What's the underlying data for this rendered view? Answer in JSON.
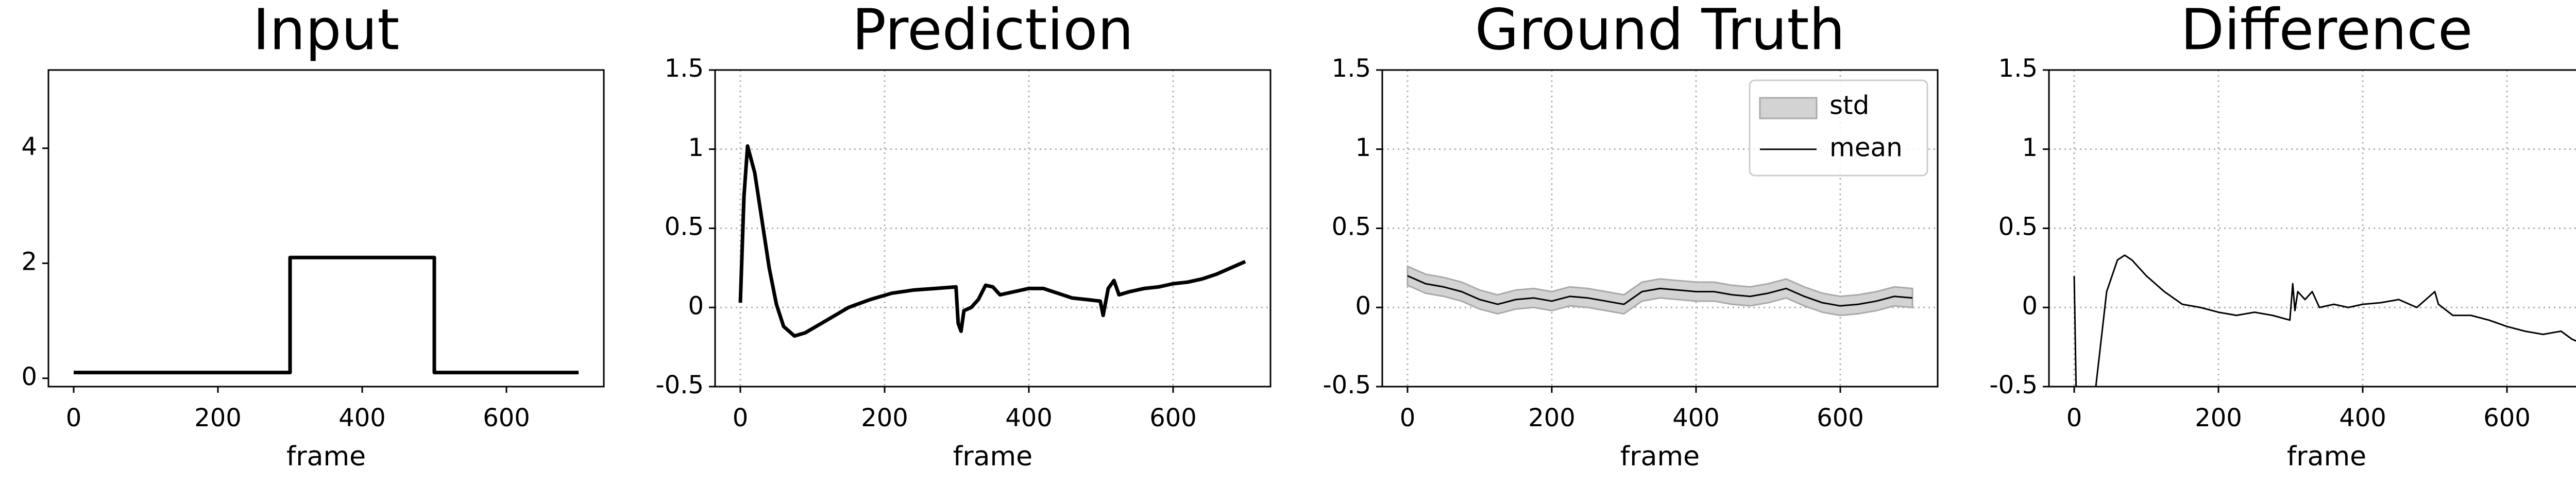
{
  "chart_data": [
    {
      "type": "line",
      "title": "Input",
      "xlabel": "frame",
      "x": [
        0,
        300,
        300,
        500,
        500,
        700
      ],
      "series": [
        {
          "color": "#000000",
          "values": [
            0.1,
            0.1,
            2.1,
            2.1,
            0.1,
            0.1
          ]
        }
      ],
      "xlim": [
        -35,
        735
      ],
      "ylim": [
        -0.145,
        5.36
      ],
      "xticks": [
        0,
        200,
        400,
        600
      ],
      "yticks": [
        0,
        2,
        4
      ],
      "grid": false
    },
    {
      "type": "line",
      "title": "Prediction",
      "xlabel": "frame",
      "x": [
        0,
        5,
        10,
        20,
        30,
        40,
        50,
        60,
        75,
        90,
        120,
        150,
        180,
        210,
        240,
        270,
        299,
        302,
        306,
        310,
        320,
        330,
        340,
        350,
        360,
        380,
        400,
        420,
        440,
        460,
        480,
        499,
        503,
        510,
        518,
        525,
        540,
        560,
        580,
        600,
        620,
        640,
        660,
        680,
        700
      ],
      "series": [
        {
          "color": "#000000",
          "values": [
            0.03,
            0.7,
            1.02,
            0.85,
            0.55,
            0.25,
            0.02,
            -0.12,
            -0.18,
            -0.16,
            -0.08,
            0.0,
            0.05,
            0.09,
            0.11,
            0.12,
            0.13,
            -0.1,
            -0.15,
            -0.02,
            0.0,
            0.05,
            0.14,
            0.13,
            0.08,
            0.1,
            0.12,
            0.12,
            0.09,
            0.06,
            0.05,
            0.04,
            -0.05,
            0.12,
            0.17,
            0.08,
            0.1,
            0.12,
            0.13,
            0.15,
            0.16,
            0.18,
            0.21,
            0.25,
            0.29
          ]
        }
      ],
      "xlim": [
        -35,
        735
      ],
      "ylim": [
        -0.5,
        1.5
      ],
      "xticks": [
        0,
        200,
        400,
        600
      ],
      "yticks": [
        -0.5,
        0.0,
        0.5,
        1.0,
        1.5
      ],
      "grid": true
    },
    {
      "type": "band",
      "title": "Ground Truth",
      "xlabel": "frame",
      "legend": "upper right",
      "x": [
        0,
        25,
        50,
        75,
        100,
        125,
        150,
        175,
        200,
        225,
        250,
        275,
        300,
        325,
        350,
        375,
        400,
        425,
        450,
        475,
        500,
        525,
        550,
        575,
        600,
        625,
        650,
        675,
        700
      ],
      "series": [
        {
          "name": "std",
          "color": "#d3d3d3",
          "values": [
            0.06,
            0.06,
            0.06,
            0.06,
            0.06,
            0.06,
            0.06,
            0.06,
            0.06,
            0.06,
            0.06,
            0.06,
            0.06,
            0.06,
            0.06,
            0.06,
            0.06,
            0.06,
            0.06,
            0.06,
            0.06,
            0.06,
            0.06,
            0.06,
            0.06,
            0.06,
            0.06,
            0.06,
            0.06
          ]
        },
        {
          "name": "mean",
          "color": "#000000",
          "values": [
            0.2,
            0.15,
            0.13,
            0.1,
            0.05,
            0.02,
            0.05,
            0.06,
            0.04,
            0.07,
            0.06,
            0.04,
            0.02,
            0.1,
            0.12,
            0.11,
            0.1,
            0.1,
            0.08,
            0.07,
            0.09,
            0.12,
            0.07,
            0.03,
            0.01,
            0.02,
            0.04,
            0.07,
            0.06
          ]
        }
      ],
      "xlim": [
        -35,
        735
      ],
      "ylim": [
        -0.5,
        1.5
      ],
      "xticks": [
        0,
        200,
        400,
        600
      ],
      "yticks": [
        -0.5,
        0.0,
        0.5,
        1.0,
        1.5
      ],
      "grid": true
    },
    {
      "type": "line",
      "title": "Difference",
      "xlabel": "frame",
      "x": [
        0,
        3,
        15,
        30,
        45,
        60,
        70,
        80,
        100,
        125,
        150,
        175,
        200,
        225,
        250,
        275,
        299,
        303,
        306,
        310,
        320,
        330,
        340,
        360,
        380,
        400,
        425,
        450,
        475,
        500,
        505,
        525,
        550,
        575,
        600,
        625,
        650,
        675,
        690,
        700
      ],
      "series": [
        {
          "color": "#000000",
          "values": [
            0.2,
            -0.6,
            -0.9,
            -0.5,
            0.1,
            0.3,
            0.33,
            0.3,
            0.2,
            0.1,
            0.02,
            0.0,
            -0.03,
            -0.05,
            -0.03,
            -0.05,
            -0.08,
            0.15,
            -0.02,
            0.1,
            0.05,
            0.1,
            0.0,
            0.02,
            0.0,
            0.02,
            0.03,
            0.05,
            0.0,
            0.1,
            0.02,
            -0.05,
            -0.05,
            -0.08,
            -0.12,
            -0.15,
            -0.17,
            -0.15,
            -0.2,
            -0.22
          ]
        }
      ],
      "xlim": [
        -35,
        735
      ],
      "ylim": [
        -0.5,
        1.5
      ],
      "xticks": [
        0,
        200,
        400,
        600
      ],
      "yticks": [
        -0.5,
        0.0,
        0.5,
        1.0,
        1.5
      ],
      "grid": true
    }
  ]
}
